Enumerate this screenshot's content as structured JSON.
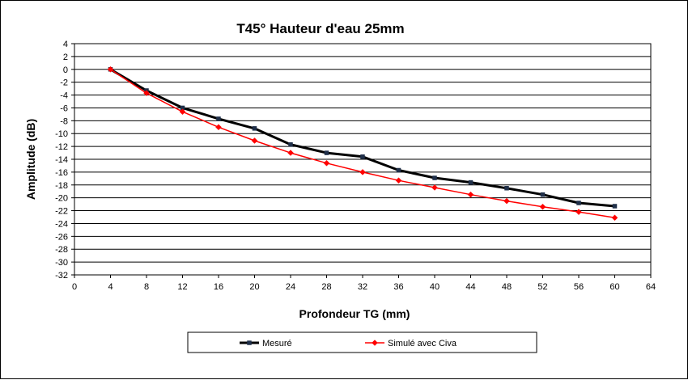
{
  "chart_data": {
    "type": "line",
    "title": "T45°  Hauteur d'eau 25mm",
    "xlabel": "Profondeur TG (mm)",
    "ylabel": "Amplitude (dB)",
    "xlim": [
      0,
      64
    ],
    "ylim": [
      -32,
      4
    ],
    "xticks": [
      "0",
      "4",
      "8",
      "12",
      "16",
      "20",
      "24",
      "28",
      "32",
      "36",
      "40",
      "44",
      "48",
      "52",
      "56",
      "60",
      "64"
    ],
    "yticks": [
      "4",
      "2",
      "0",
      "-2",
      "-4",
      "-6",
      "-8",
      "-10",
      "-12",
      "-14",
      "-16",
      "-18",
      "-20",
      "-22",
      "-24",
      "-26",
      "-28",
      "-30",
      "-32"
    ],
    "grid": "horizontal",
    "legend_position": "bottom",
    "x": [
      4,
      8,
      12,
      16,
      20,
      24,
      28,
      32,
      36,
      40,
      44,
      48,
      52,
      56,
      60
    ],
    "series": [
      {
        "name": "Mesuré",
        "color": "#000000",
        "marker": "square",
        "values": [
          0,
          -3.3,
          -6.0,
          -7.7,
          -9.2,
          -11.7,
          -13.0,
          -13.6,
          -15.7,
          -16.9,
          -17.6,
          -18.5,
          -19.5,
          -20.8,
          -21.3
        ]
      },
      {
        "name": "Simulé avec Civa",
        "color": "#ff0000",
        "marker": "diamond",
        "values": [
          0,
          -3.7,
          -6.6,
          -9.0,
          -11.1,
          -13.0,
          -14.6,
          -16.0,
          -17.3,
          -18.4,
          -19.5,
          -20.5,
          -21.4,
          -22.2,
          -23.1
        ]
      }
    ]
  }
}
